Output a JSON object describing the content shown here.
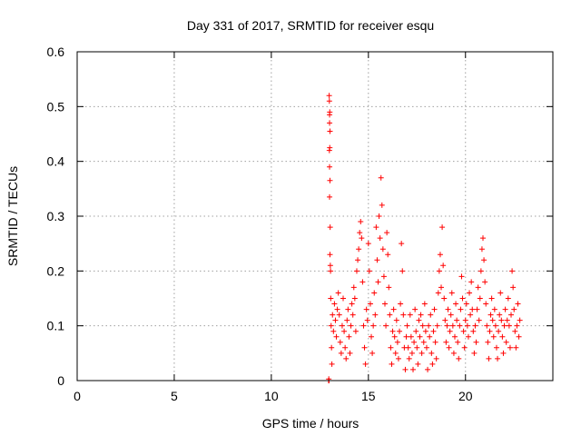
{
  "chart_data": {
    "type": "scatter",
    "title": "Day 331 of 2017, SRMTID for receiver esqu",
    "xlabel": "GPS time / hours",
    "ylabel": "SRMTID / TECUs",
    "xlim": [
      0,
      24.5
    ],
    "ylim": [
      0,
      0.6
    ],
    "x_ticks": [
      0,
      5,
      10,
      15,
      20
    ],
    "y_ticks": [
      0,
      0.1,
      0.2,
      0.3,
      0.4,
      0.5,
      0.6
    ],
    "x_tick_labels": [
      "0",
      "5",
      "10",
      "15",
      "20"
    ],
    "y_tick_labels": [
      "0",
      "0.1",
      "0.2",
      "0.3",
      "0.4",
      "0.5",
      "0.6"
    ],
    "grid": true,
    "marker": "+",
    "series": [
      {
        "name": "SRMTID",
        "color": "#ff0000",
        "points": [
          [
            12.95,
            0.0
          ],
          [
            12.96,
            0.003
          ],
          [
            12.97,
            0.0
          ],
          [
            12.98,
            0.52
          ],
          [
            12.99,
            0.51
          ],
          [
            13.0,
            0.485
          ],
          [
            13.01,
            0.49
          ],
          [
            13.0,
            0.47
          ],
          [
            13.02,
            0.455
          ],
          [
            12.99,
            0.42
          ],
          [
            13.01,
            0.425
          ],
          [
            13.0,
            0.39
          ],
          [
            13.02,
            0.365
          ],
          [
            13.0,
            0.335
          ],
          [
            13.03,
            0.28
          ],
          [
            13.02,
            0.23
          ],
          [
            13.04,
            0.21
          ],
          [
            13.05,
            0.2
          ],
          [
            13.06,
            0.15
          ],
          [
            13.08,
            0.1
          ],
          [
            13.1,
            0.06
          ],
          [
            13.12,
            0.03
          ],
          [
            13.15,
            0.12
          ],
          [
            13.2,
            0.09
          ],
          [
            13.25,
            0.14
          ],
          [
            13.3,
            0.11
          ],
          [
            13.35,
            0.08
          ],
          [
            13.4,
            0.13
          ],
          [
            13.45,
            0.16
          ],
          [
            13.5,
            0.12
          ],
          [
            13.55,
            0.07
          ],
          [
            13.6,
            0.05
          ],
          [
            13.65,
            0.1
          ],
          [
            13.7,
            0.15
          ],
          [
            13.75,
            0.09
          ],
          [
            13.8,
            0.06
          ],
          [
            13.85,
            0.04
          ],
          [
            13.9,
            0.11
          ],
          [
            13.95,
            0.13
          ],
          [
            14.0,
            0.08
          ],
          [
            14.05,
            0.05
          ],
          [
            14.1,
            0.1
          ],
          [
            14.15,
            0.14
          ],
          [
            14.2,
            0.12
          ],
          [
            14.25,
            0.17
          ],
          [
            14.3,
            0.15
          ],
          [
            14.35,
            0.09
          ],
          [
            14.4,
            0.2
          ],
          [
            14.45,
            0.22
          ],
          [
            14.5,
            0.24
          ],
          [
            14.55,
            0.27
          ],
          [
            14.6,
            0.29
          ],
          [
            14.65,
            0.26
          ],
          [
            14.7,
            0.18
          ],
          [
            14.75,
            0.1
          ],
          [
            14.8,
            0.06
          ],
          [
            14.85,
            0.03
          ],
          [
            14.9,
            0.13
          ],
          [
            14.95,
            0.11
          ],
          [
            15.0,
            0.25
          ],
          [
            15.05,
            0.2
          ],
          [
            15.1,
            0.14
          ],
          [
            15.15,
            0.08
          ],
          [
            15.2,
            0.05
          ],
          [
            15.25,
            0.1
          ],
          [
            15.3,
            0.16
          ],
          [
            15.35,
            0.12
          ],
          [
            15.4,
            0.28
          ],
          [
            15.45,
            0.22
          ],
          [
            15.5,
            0.18
          ],
          [
            15.55,
            0.3
          ],
          [
            15.6,
            0.26
          ],
          [
            15.65,
            0.37
          ],
          [
            15.7,
            0.32
          ],
          [
            15.75,
            0.24
          ],
          [
            15.8,
            0.19
          ],
          [
            15.85,
            0.14
          ],
          [
            15.9,
            0.1
          ],
          [
            15.95,
            0.27
          ],
          [
            16.0,
            0.23
          ],
          [
            16.05,
            0.17
          ],
          [
            16.1,
            0.12
          ],
          [
            16.15,
            0.06
          ],
          [
            16.2,
            0.03
          ],
          [
            16.25,
            0.09
          ],
          [
            16.3,
            0.13
          ],
          [
            16.35,
            0.08
          ],
          [
            16.4,
            0.05
          ],
          [
            16.45,
            0.11
          ],
          [
            16.5,
            0.07
          ],
          [
            16.55,
            0.04
          ],
          [
            16.6,
            0.09
          ],
          [
            16.65,
            0.14
          ],
          [
            16.7,
            0.25
          ],
          [
            16.75,
            0.2
          ],
          [
            16.8,
            0.12
          ],
          [
            16.85,
            0.06
          ],
          [
            16.9,
            0.02
          ],
          [
            16.95,
            0.08
          ],
          [
            17.0,
            0.1
          ],
          [
            17.05,
            0.06
          ],
          [
            17.1,
            0.04
          ],
          [
            17.15,
            0.12
          ],
          [
            17.2,
            0.08
          ],
          [
            17.25,
            0.05
          ],
          [
            17.3,
            0.02
          ],
          [
            17.35,
            0.07
          ],
          [
            17.4,
            0.13
          ],
          [
            17.45,
            0.09
          ],
          [
            17.5,
            0.06
          ],
          [
            17.55,
            0.03
          ],
          [
            17.6,
            0.11
          ],
          [
            17.65,
            0.08
          ],
          [
            17.7,
            0.12
          ],
          [
            17.75,
            0.05
          ],
          [
            17.8,
            0.1
          ],
          [
            17.85,
            0.07
          ],
          [
            17.9,
            0.14
          ],
          [
            17.95,
            0.09
          ],
          [
            18.0,
            0.06
          ],
          [
            18.05,
            0.02
          ],
          [
            18.1,
            0.1
          ],
          [
            18.15,
            0.08
          ],
          [
            18.2,
            0.12
          ],
          [
            18.25,
            0.05
          ],
          [
            18.3,
            0.03
          ],
          [
            18.35,
            0.09
          ],
          [
            18.4,
            0.13
          ],
          [
            18.45,
            0.07
          ],
          [
            18.5,
            0.04
          ],
          [
            18.55,
            0.1
          ],
          [
            18.6,
            0.16
          ],
          [
            18.65,
            0.2
          ],
          [
            18.7,
            0.23
          ],
          [
            18.75,
            0.17
          ],
          [
            18.8,
            0.28
          ],
          [
            18.85,
            0.21
          ],
          [
            18.9,
            0.15
          ],
          [
            18.95,
            0.11
          ],
          [
            19.0,
            0.07
          ],
          [
            19.05,
            0.1
          ],
          [
            19.1,
            0.13
          ],
          [
            19.15,
            0.06
          ],
          [
            19.2,
            0.09
          ],
          [
            19.25,
            0.12
          ],
          [
            19.3,
            0.16
          ],
          [
            19.35,
            0.1
          ],
          [
            19.4,
            0.05
          ],
          [
            19.45,
            0.08
          ],
          [
            19.5,
            0.14
          ],
          [
            19.55,
            0.11
          ],
          [
            19.6,
            0.07
          ],
          [
            19.65,
            0.04
          ],
          [
            19.7,
            0.1
          ],
          [
            19.75,
            0.13
          ],
          [
            19.8,
            0.19
          ],
          [
            19.85,
            0.15
          ],
          [
            19.9,
            0.09
          ],
          [
            19.95,
            0.06
          ],
          [
            20.0,
            0.11
          ],
          [
            20.05,
            0.14
          ],
          [
            20.1,
            0.1
          ],
          [
            20.15,
            0.08
          ],
          [
            20.2,
            0.16
          ],
          [
            20.25,
            0.12
          ],
          [
            20.3,
            0.18
          ],
          [
            20.35,
            0.13
          ],
          [
            20.4,
            0.09
          ],
          [
            20.45,
            0.05
          ],
          [
            20.5,
            0.1
          ],
          [
            20.55,
            0.07
          ],
          [
            20.6,
            0.13
          ],
          [
            20.65,
            0.17
          ],
          [
            20.7,
            0.11
          ],
          [
            20.75,
            0.15
          ],
          [
            20.8,
            0.2
          ],
          [
            20.85,
            0.24
          ],
          [
            20.9,
            0.26
          ],
          [
            20.95,
            0.22
          ],
          [
            21.0,
            0.18
          ],
          [
            21.05,
            0.14
          ],
          [
            21.1,
            0.1
          ],
          [
            21.15,
            0.07
          ],
          [
            21.2,
            0.04
          ],
          [
            21.25,
            0.09
          ],
          [
            21.3,
            0.12
          ],
          [
            21.35,
            0.15
          ],
          [
            21.4,
            0.11
          ],
          [
            21.45,
            0.08
          ],
          [
            21.5,
            0.13
          ],
          [
            21.55,
            0.1
          ],
          [
            21.6,
            0.06
          ],
          [
            21.65,
            0.04
          ],
          [
            21.7,
            0.09
          ],
          [
            21.75,
            0.12
          ],
          [
            21.8,
            0.16
          ],
          [
            21.85,
            0.11
          ],
          [
            21.9,
            0.08
          ],
          [
            21.95,
            0.05
          ],
          [
            22.0,
            0.1
          ],
          [
            22.05,
            0.13
          ],
          [
            22.1,
            0.07
          ],
          [
            22.15,
            0.11
          ],
          [
            22.2,
            0.15
          ],
          [
            22.25,
            0.1
          ],
          [
            22.3,
            0.06
          ],
          [
            22.35,
            0.12
          ],
          [
            22.4,
            0.2
          ],
          [
            22.45,
            0.17
          ],
          [
            22.5,
            0.13
          ],
          [
            22.55,
            0.09
          ],
          [
            22.6,
            0.06
          ],
          [
            22.65,
            0.1
          ],
          [
            22.7,
            0.14
          ],
          [
            22.75,
            0.08
          ],
          [
            22.8,
            0.11
          ]
        ]
      }
    ]
  }
}
